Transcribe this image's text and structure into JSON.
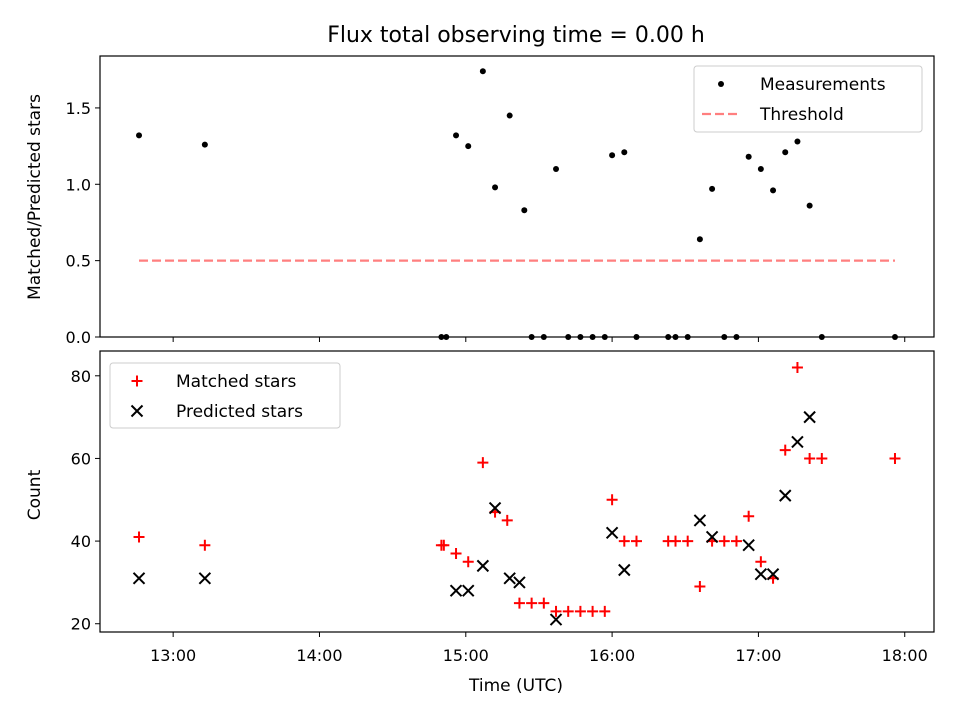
{
  "chart_data": [
    {
      "type": "scatter",
      "title": "Flux total observing time = 0.00 h",
      "xlabel": "",
      "ylabel": "Matched/Predicted stars",
      "xlim": [
        "12:30",
        "18:12"
      ],
      "ylim": [
        0,
        1.84
      ],
      "yticks": [
        "0.0",
        "0.5",
        "1.0",
        "1.5"
      ],
      "grid": false,
      "legend_position": "top-right",
      "series": [
        {
          "name": "Measurements",
          "marker": "dot",
          "color": "#000000",
          "points": [
            [
              "12:46",
              1.32
            ],
            [
              "13:13",
              1.26
            ],
            [
              "14:50",
              0.0
            ],
            [
              "14:52",
              0.0
            ],
            [
              "14:56",
              1.32
            ],
            [
              "15:01",
              1.25
            ],
            [
              "15:07",
              1.74
            ],
            [
              "15:12",
              0.98
            ],
            [
              "15:18",
              1.45
            ],
            [
              "15:24",
              0.83
            ],
            [
              "15:27",
              0.0
            ],
            [
              "15:32",
              0.0
            ],
            [
              "15:37",
              1.1
            ],
            [
              "15:42",
              0.0
            ],
            [
              "15:47",
              0.0
            ],
            [
              "15:52",
              0.0
            ],
            [
              "15:57",
              0.0
            ],
            [
              "16:00",
              1.19
            ],
            [
              "16:05",
              1.21
            ],
            [
              "16:10",
              0.0
            ],
            [
              "16:23",
              0.0
            ],
            [
              "16:26",
              0.0
            ],
            [
              "16:31",
              0.0
            ],
            [
              "16:36",
              0.64
            ],
            [
              "16:41",
              0.97
            ],
            [
              "16:46",
              0.0
            ],
            [
              "16:51",
              0.0
            ],
            [
              "16:56",
              1.18
            ],
            [
              "17:01",
              1.1
            ],
            [
              "17:06",
              0.96
            ],
            [
              "17:11",
              1.21
            ],
            [
              "17:16",
              1.28
            ],
            [
              "17:21",
              0.86
            ],
            [
              "17:26",
              0.0
            ],
            [
              "17:56",
              0.0
            ]
          ]
        },
        {
          "name": "Threshold",
          "style": "dashed",
          "color": "#ff7f7f",
          "x": [
            "12:46",
            "17:56"
          ],
          "y": [
            0.5,
            0.5
          ]
        }
      ]
    },
    {
      "type": "scatter",
      "title": "",
      "xlabel": "Time (UTC)",
      "ylabel": "Count",
      "xlim": [
        "12:30",
        "18:12"
      ],
      "ylim": [
        18,
        86
      ],
      "xticks": [
        "13:00",
        "14:00",
        "15:00",
        "16:00",
        "17:00",
        "18:00"
      ],
      "yticks": [
        "20",
        "40",
        "60",
        "80"
      ],
      "grid": false,
      "legend_position": "top-left",
      "series": [
        {
          "name": "Matched stars",
          "marker": "plus",
          "color": "#ff0000",
          "points": [
            [
              "12:46",
              41
            ],
            [
              "13:13",
              39
            ],
            [
              "14:50",
              39
            ],
            [
              "14:51",
              39
            ],
            [
              "14:56",
              37
            ],
            [
              "15:01",
              35
            ],
            [
              "15:07",
              59
            ],
            [
              "15:12",
              47
            ],
            [
              "15:17",
              45
            ],
            [
              "15:22",
              25
            ],
            [
              "15:27",
              25
            ],
            [
              "15:32",
              25
            ],
            [
              "15:37",
              23
            ],
            [
              "15:42",
              23
            ],
            [
              "15:47",
              23
            ],
            [
              "15:52",
              23
            ],
            [
              "15:57",
              23
            ],
            [
              "16:00",
              50
            ],
            [
              "16:05",
              40
            ],
            [
              "16:10",
              40
            ],
            [
              "16:23",
              40
            ],
            [
              "16:26",
              40
            ],
            [
              "16:31",
              40
            ],
            [
              "16:36",
              29
            ],
            [
              "16:41",
              40
            ],
            [
              "16:46",
              40
            ],
            [
              "16:51",
              40
            ],
            [
              "16:56",
              46
            ],
            [
              "17:01",
              35
            ],
            [
              "17:06",
              31
            ],
            [
              "17:11",
              62
            ],
            [
              "17:16",
              82
            ],
            [
              "17:21",
              60
            ],
            [
              "17:26",
              60
            ],
            [
              "17:56",
              60
            ]
          ]
        },
        {
          "name": "Predicted stars",
          "marker": "x",
          "color": "#000000",
          "points": [
            [
              "12:46",
              31
            ],
            [
              "13:13",
              31
            ],
            [
              "14:56",
              28
            ],
            [
              "15:01",
              28
            ],
            [
              "15:07",
              34
            ],
            [
              "15:12",
              48
            ],
            [
              "15:18",
              31
            ],
            [
              "15:22",
              30
            ],
            [
              "15:37",
              21
            ],
            [
              "16:00",
              42
            ],
            [
              "16:05",
              33
            ],
            [
              "16:36",
              45
            ],
            [
              "16:41",
              41
            ],
            [
              "16:56",
              39
            ],
            [
              "17:01",
              32
            ],
            [
              "17:06",
              32
            ],
            [
              "17:11",
              51
            ],
            [
              "17:16",
              64
            ],
            [
              "17:21",
              70
            ]
          ]
        }
      ]
    }
  ]
}
